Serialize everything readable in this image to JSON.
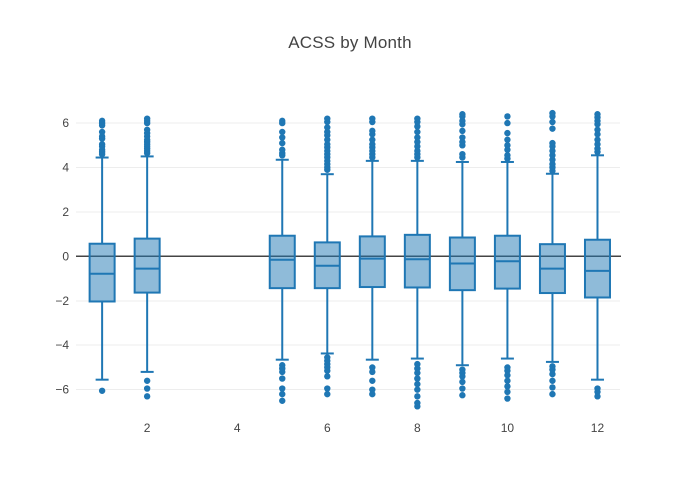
{
  "chart_data": {
    "type": "box",
    "title": "ACSS by Month",
    "xlabel": "",
    "ylabel": "",
    "legend": "none",
    "grid": true,
    "zeroline": true,
    "xlim": [
      0.42,
      12.5
    ],
    "ylim": [
      -6.6,
      7.4
    ],
    "x_tick_values": [
      2,
      4,
      6,
      8,
      10,
      12
    ],
    "x_tick_labels": [
      "2",
      "4",
      "6",
      "8",
      "10",
      "12"
    ],
    "y_tick_values": [
      -6,
      -4,
      -2,
      0,
      2,
      4,
      6
    ],
    "y_tick_labels": [
      "−6",
      "−4",
      "−2",
      "0",
      "2",
      "4",
      "6"
    ],
    "colors": {
      "box_line": "#1f77b4",
      "box_fill": "rgba(31,119,180,0.5)",
      "outlier": "#1f77b4",
      "grid": "#ededed",
      "zero_line": "#444444",
      "text": "#444444",
      "background": "#ffffff"
    },
    "series": [
      {
        "month": 1,
        "q1": -2.03,
        "median": -0.78,
        "q3": 0.57,
        "whisker_low": -5.55,
        "whisker_high": 4.45,
        "outliers_high": [
          4.6,
          4.7,
          4.8,
          4.95,
          5.05,
          5.3,
          5.4,
          5.6,
          5.9,
          6.0,
          6.1
        ],
        "outliers_low": [
          -6.05
        ]
      },
      {
        "month": 2,
        "q1": -1.63,
        "median": -0.55,
        "q3": 0.8,
        "whisker_low": -5.2,
        "whisker_high": 4.5,
        "outliers_high": [
          4.65,
          4.75,
          4.85,
          4.95,
          5.05,
          5.15,
          5.25,
          5.4,
          5.55,
          5.7,
          6.0,
          6.1,
          6.2
        ],
        "outliers_low": [
          -5.6,
          -5.95,
          -6.3
        ]
      },
      {
        "month": 5,
        "q1": -1.43,
        "median": -0.15,
        "q3": 0.93,
        "whisker_low": -4.65,
        "whisker_high": 4.35,
        "outliers_high": [
          4.55,
          4.65,
          4.8,
          5.1,
          5.35,
          5.6,
          6.0,
          6.1
        ],
        "outliers_low": [
          -4.9,
          -5.05,
          -5.2,
          -5.5,
          -5.95,
          -6.2,
          -6.5
        ]
      },
      {
        "month": 6,
        "q1": -1.43,
        "median": -0.42,
        "q3": 0.63,
        "whisker_low": -4.37,
        "whisker_high": 3.7,
        "outliers_high": [
          3.9,
          4.0,
          4.15,
          4.3,
          4.45,
          4.6,
          4.75,
          4.9,
          5.05,
          5.25,
          5.45,
          5.6,
          5.8,
          6.05,
          6.2
        ],
        "outliers_low": [
          -4.55,
          -4.7,
          -4.85,
          -5.0,
          -5.15,
          -5.4,
          -5.95,
          -6.2
        ]
      },
      {
        "month": 7,
        "q1": -1.38,
        "median": -0.1,
        "q3": 0.9,
        "whisker_low": -4.65,
        "whisker_high": 4.3,
        "outliers_high": [
          4.45,
          4.6,
          4.75,
          4.9,
          5.05,
          5.25,
          5.5,
          5.65,
          6.05,
          6.2
        ],
        "outliers_low": [
          -5.0,
          -5.2,
          -5.6,
          -6.0,
          -6.2
        ]
      },
      {
        "month": 8,
        "q1": -1.4,
        "median": -0.13,
        "q3": 0.97,
        "whisker_low": -4.6,
        "whisker_high": 4.3,
        "outliers_high": [
          4.45,
          4.6,
          4.75,
          4.95,
          5.15,
          5.35,
          5.6,
          5.85,
          6.05,
          6.2
        ],
        "outliers_low": [
          -4.85,
          -5.05,
          -5.25,
          -5.5,
          -5.75,
          -6.0,
          -6.3,
          -6.6,
          -6.75
        ]
      },
      {
        "month": 9,
        "q1": -1.52,
        "median": -0.32,
        "q3": 0.85,
        "whisker_low": -4.9,
        "whisker_high": 4.25,
        "outliers_high": [
          4.45,
          4.6,
          5.0,
          5.15,
          5.35,
          5.65,
          5.95,
          6.1,
          6.3,
          6.4
        ],
        "outliers_low": [
          -5.1,
          -5.25,
          -5.4,
          -5.65,
          -5.95,
          -6.25
        ]
      },
      {
        "month": 10,
        "q1": -1.45,
        "median": -0.22,
        "q3": 0.93,
        "whisker_low": -4.6,
        "whisker_high": 4.25,
        "outliers_high": [
          4.4,
          4.55,
          4.8,
          5.0,
          5.25,
          5.55,
          6.0,
          6.3
        ],
        "outliers_low": [
          -5.0,
          -5.15,
          -5.35,
          -5.6,
          -5.85,
          -6.1,
          -6.4
        ]
      },
      {
        "month": 11,
        "q1": -1.65,
        "median": -0.55,
        "q3": 0.55,
        "whisker_low": -4.75,
        "whisker_high": 3.72,
        "outliers_high": [
          3.85,
          4.0,
          4.15,
          4.35,
          4.55,
          4.75,
          4.95,
          5.1,
          5.75,
          6.05,
          6.3,
          6.45
        ],
        "outliers_low": [
          -4.95,
          -5.1,
          -5.3,
          -5.6,
          -5.9,
          -6.2
        ]
      },
      {
        "month": 12,
        "q1": -1.85,
        "median": -0.65,
        "q3": 0.75,
        "whisker_low": -5.55,
        "whisker_high": 4.55,
        "outliers_high": [
          4.7,
          4.85,
          5.05,
          5.25,
          5.5,
          5.7,
          5.95,
          6.1,
          6.25,
          6.4
        ],
        "outliers_low": [
          -5.95,
          -6.1,
          -6.3
        ]
      }
    ]
  }
}
